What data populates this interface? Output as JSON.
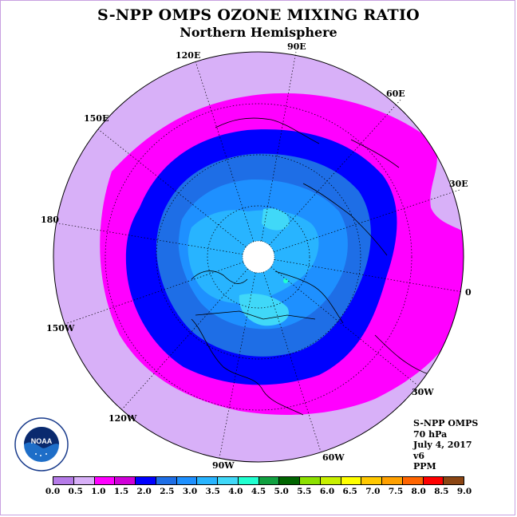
{
  "header": {
    "title": "S-NPP OMPS OZONE MIXING RATIO",
    "subtitle": "Northern Hemisphere"
  },
  "map": {
    "longitude_labels": [
      "90E",
      "60E",
      "30E",
      "0",
      "30W",
      "60W",
      "90W",
      "120W",
      "150W",
      "180",
      "150E",
      "120E"
    ]
  },
  "info": {
    "lines": [
      "S-NPP OMPS",
      "70 hPa",
      "July 4, 2017",
      "v6",
      "PPM"
    ]
  },
  "colorbar": {
    "colors": [
      "#b57be8",
      "#d8b0f8",
      "#ff00ff",
      "#d000d8",
      "#0000ff",
      "#1e6ee6",
      "#1e90ff",
      "#28b4ff",
      "#40d8f8",
      "#20ffd0",
      "#10a040",
      "#006400",
      "#8ce000",
      "#c8f000",
      "#ffff00",
      "#ffc800",
      "#ffa000",
      "#ff6400",
      "#ff0000",
      "#8b4513"
    ],
    "ticks": [
      "0.0",
      "0.5",
      "1.0",
      "1.5",
      "2.0",
      "2.5",
      "3.0",
      "3.5",
      "4.0",
      "4.5",
      "5.0",
      "5.5",
      "6.0",
      "6.5",
      "7.0",
      "7.5",
      "8.0",
      "8.5",
      "9.0"
    ]
  },
  "logo": {
    "name": "NOAA",
    "text": "NATIONAL OCEANIC AND ATMOSPHERIC ADMINISTRATION · U.S. DEPARTMENT OF COMMERCE"
  }
}
